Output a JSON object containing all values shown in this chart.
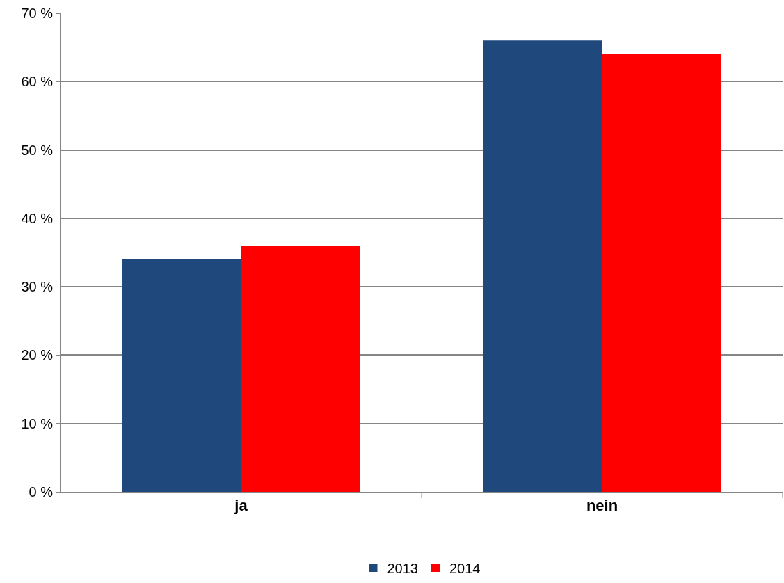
{
  "chart_data": {
    "type": "bar",
    "categories": [
      "ja",
      "nein"
    ],
    "series": [
      {
        "name": "2013",
        "color": "#1f497d",
        "values": [
          34,
          66
        ]
      },
      {
        "name": "2014",
        "color": "#ff0000",
        "values": [
          36,
          64
        ]
      }
    ],
    "ylim": [
      0,
      70
    ],
    "yticks": [
      {
        "value": 0,
        "label": "0 %"
      },
      {
        "value": 10,
        "label": "10 %"
      },
      {
        "value": 20,
        "label": "20 %"
      },
      {
        "value": 30,
        "label": "30 %"
      },
      {
        "value": 40,
        "label": "40 %"
      },
      {
        "value": 50,
        "label": "50 %"
      },
      {
        "value": 60,
        "label": "60 %"
      },
      {
        "value": 70,
        "label": "70 %"
      }
    ],
    "grid": "y",
    "legend": "bottom"
  }
}
